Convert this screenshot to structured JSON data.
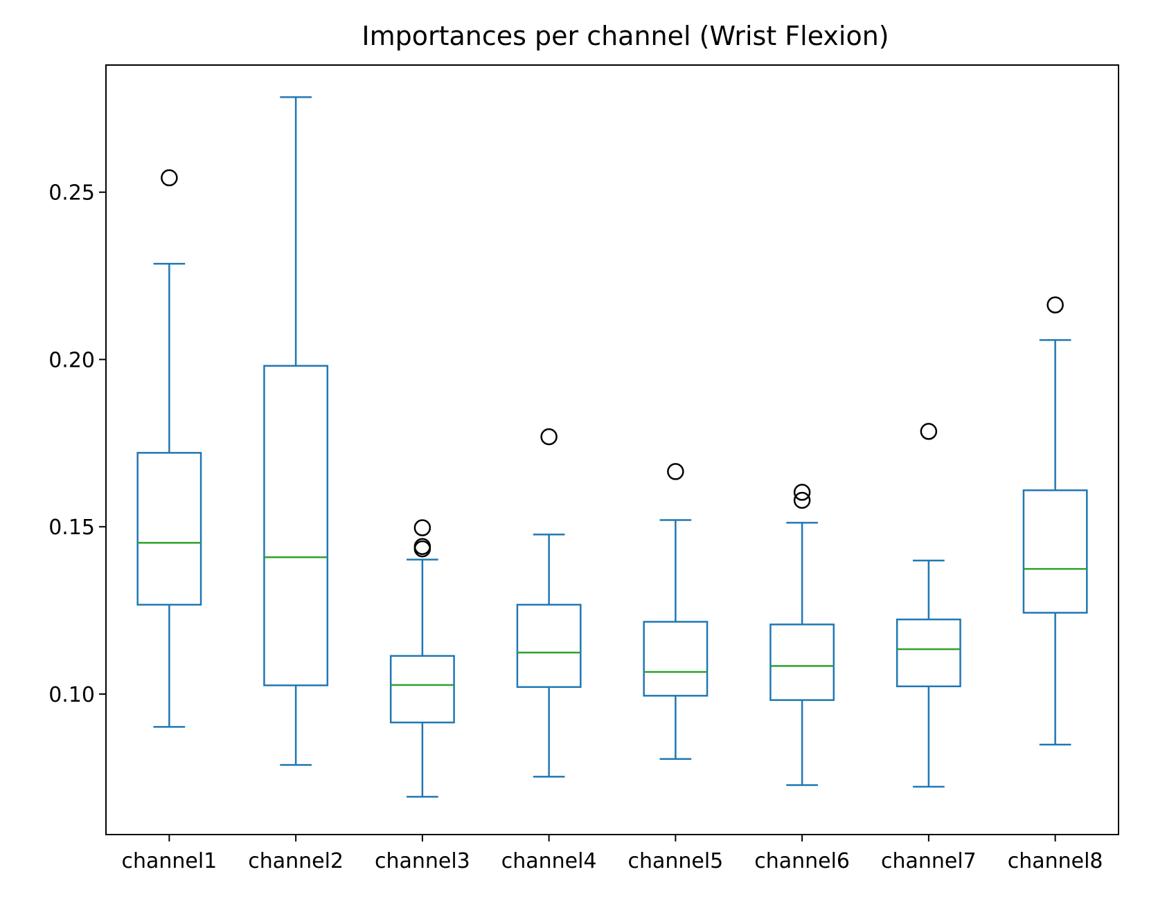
{
  "chart_data": {
    "type": "box",
    "title": "Importances per channel (Wrist Flexion)",
    "xlabel": "",
    "ylabel": "",
    "ylim": [
      0.058,
      0.288
    ],
    "yticks": [
      0.1,
      0.15,
      0.2,
      0.25
    ],
    "ytick_labels": [
      "0.10",
      "0.15",
      "0.20",
      "0.25"
    ],
    "grid": false,
    "legend": "none",
    "colors": {
      "box": "#1f77b4",
      "median": "#2ca02c",
      "flier": "#000000"
    },
    "categories": [
      "channel1",
      "channel2",
      "channel3",
      "channel4",
      "channel5",
      "channel6",
      "channel7",
      "channel8"
    ],
    "boxes": [
      {
        "whislo": 0.0902,
        "q1": 0.1267,
        "med": 0.1452,
        "q3": 0.1721,
        "whishi": 0.2286,
        "fliers": [
          0.2543
        ]
      },
      {
        "whislo": 0.0788,
        "q1": 0.1026,
        "med": 0.1409,
        "q3": 0.1981,
        "whishi": 0.2784,
        "fliers": []
      },
      {
        "whislo": 0.0693,
        "q1": 0.0915,
        "med": 0.1027,
        "q3": 0.1114,
        "whishi": 0.1402,
        "fliers": [
          0.1497,
          0.1441,
          0.1434
        ]
      },
      {
        "whislo": 0.0753,
        "q1": 0.1021,
        "med": 0.1124,
        "q3": 0.1267,
        "whishi": 0.1477,
        "fliers": [
          0.1769
        ]
      },
      {
        "whislo": 0.0806,
        "q1": 0.0995,
        "med": 0.1066,
        "q3": 0.1216,
        "whishi": 0.152,
        "fliers": [
          0.1665
        ]
      },
      {
        "whislo": 0.0728,
        "q1": 0.0982,
        "med": 0.1084,
        "q3": 0.1208,
        "whishi": 0.1512,
        "fliers": [
          0.1603,
          0.1579
        ]
      },
      {
        "whislo": 0.0723,
        "q1": 0.1023,
        "med": 0.1134,
        "q3": 0.1223,
        "whishi": 0.1399,
        "fliers": [
          0.1785
        ]
      },
      {
        "whislo": 0.0849,
        "q1": 0.1243,
        "med": 0.1374,
        "q3": 0.1609,
        "whishi": 0.2058,
        "fliers": [
          0.2163
        ]
      }
    ]
  }
}
